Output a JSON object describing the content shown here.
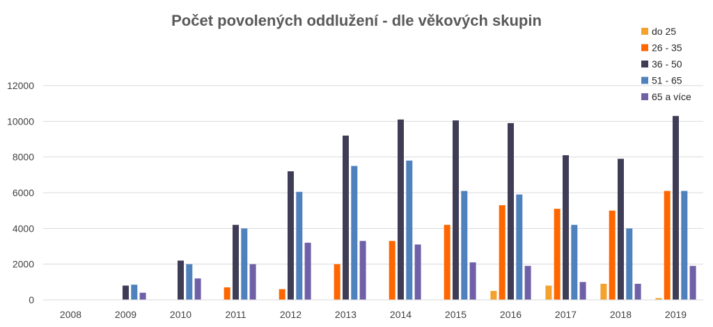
{
  "chart_data": {
    "type": "bar",
    "title": "Počet povolených oddlužení - dle věkových skupin",
    "xlabel": "",
    "ylabel": "",
    "ylim": [
      0,
      12000
    ],
    "yticks": [
      0,
      2000,
      4000,
      6000,
      8000,
      10000,
      12000
    ],
    "grid": true,
    "legend_position": "top-right",
    "categories": [
      "2008",
      "2009",
      "2010",
      "2011",
      "2012",
      "2013",
      "2014",
      "2015",
      "2016",
      "2017",
      "2018",
      "2019"
    ],
    "series": [
      {
        "name": "do 25",
        "color": "#F4A22D",
        "values": [
          0,
          0,
          0,
          0,
          0,
          0,
          0,
          0,
          500,
          800,
          900,
          100
        ]
      },
      {
        "name": "26 - 35",
        "color": "#FF6600",
        "values": [
          0,
          0,
          0,
          700,
          600,
          2000,
          3300,
          4200,
          5300,
          5100,
          5000,
          6100
        ]
      },
      {
        "name": "36 - 50",
        "color": "#3F3D56",
        "values": [
          0,
          800,
          2200,
          4200,
          7200,
          9200,
          10100,
          10050,
          9900,
          8100,
          7900,
          10300
        ]
      },
      {
        "name": "51 - 65",
        "color": "#4F81BD",
        "values": [
          0,
          850,
          2000,
          4000,
          6050,
          7500,
          7800,
          6100,
          5900,
          4200,
          4000,
          6100
        ]
      },
      {
        "name": "65 a více",
        "color": "#7060A8",
        "values": [
          0,
          400,
          1200,
          2000,
          3200,
          3300,
          3100,
          2100,
          1900,
          1000,
          900,
          1900
        ]
      }
    ]
  }
}
